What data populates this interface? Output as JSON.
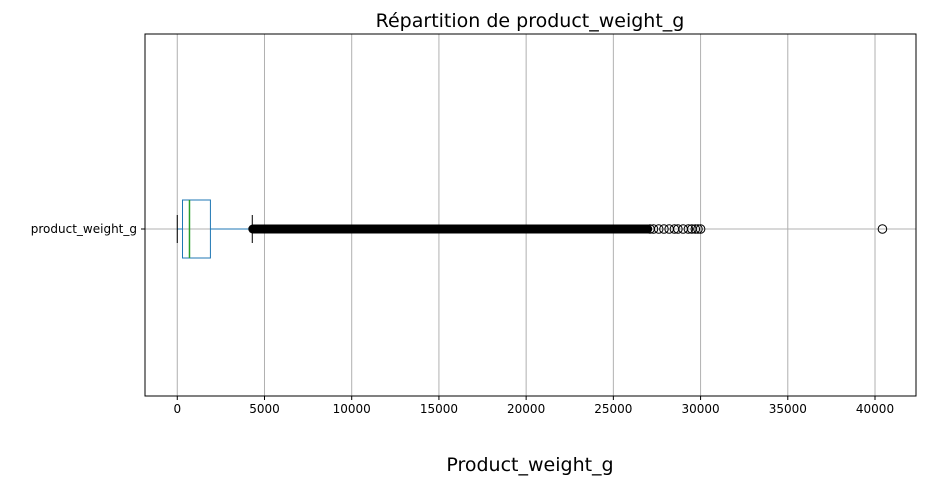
{
  "chart_data": {
    "type": "boxplot",
    "title": "Répartition de product_weight_g",
    "xlabel": "Product_weight_g",
    "ylabel": "",
    "orientation": "horizontal",
    "grid": true,
    "xlim": [
      -1850,
      42350
    ],
    "x_ticks": [
      0,
      5000,
      10000,
      15000,
      20000,
      25000,
      30000,
      35000,
      40000
    ],
    "x_tick_labels": [
      "0",
      "5000",
      "10000",
      "15000",
      "20000",
      "25000",
      "30000",
      "35000",
      "40000"
    ],
    "categories": [
      "product_weight_g"
    ],
    "boxes": [
      {
        "name": "product_weight_g",
        "whisker_low": 0,
        "q1": 300,
        "median": 700,
        "q3": 1900,
        "whisker_high": 4300,
        "outliers_dense_range": [
          4300,
          27000
        ],
        "outliers": [
          27100,
          27300,
          27600,
          27900,
          28200,
          28500,
          28700,
          29000,
          29300,
          29500,
          29700,
          29850,
          30000,
          40425
        ]
      }
    ],
    "colors": {
      "box": "#1f77b4",
      "median": "#2ca02c",
      "grid": "#b0b0b0",
      "outlier": "#000000"
    }
  }
}
